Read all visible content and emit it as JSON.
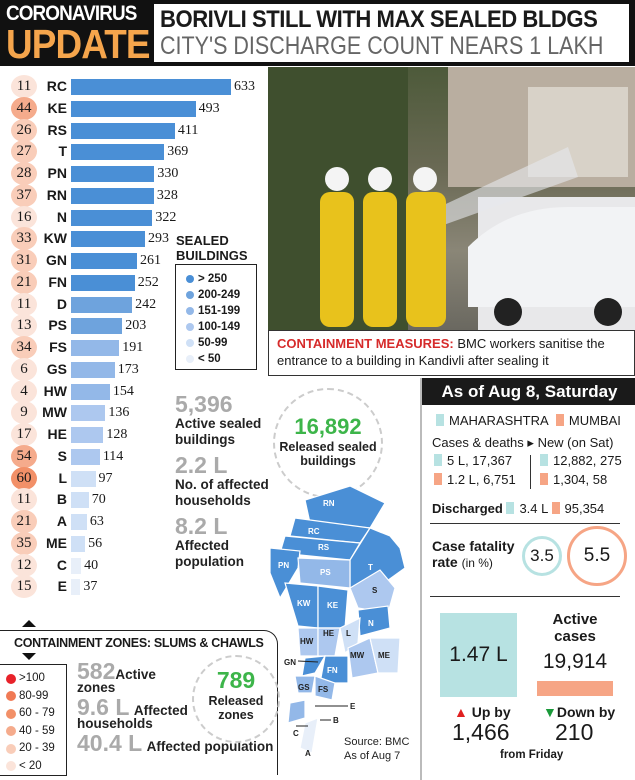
{
  "header": {
    "kicker_1": "CORONAVIRUS",
    "kicker_2": "UPDATE",
    "title": "BORIVLI STILL WITH MAX SEALED BLDGS",
    "subtitle": "CITY'S DISCHARGE COUNT NEARS 1 LAKH"
  },
  "chart_data": {
    "type": "bar",
    "orientation": "horizontal",
    "categories": [
      "RC",
      "KE",
      "RS",
      "T",
      "PN",
      "RN",
      "N",
      "KW",
      "GN",
      "FN",
      "D",
      "PS",
      "FS",
      "GS",
      "HW",
      "MW",
      "HE",
      "S",
      "L",
      "B",
      "A",
      "ME",
      "C",
      "E"
    ],
    "series": [
      {
        "name": "SEALED BUILDINGS",
        "values": [
          633,
          493,
          411,
          369,
          330,
          328,
          322,
          293,
          261,
          252,
          242,
          203,
          191,
          173,
          154,
          136,
          128,
          114,
          97,
          70,
          63,
          56,
          40,
          37
        ]
      },
      {
        "name": "CONTAINMENT ZONES: SLUMS & CHAWLS",
        "values": [
          11,
          44,
          26,
          27,
          28,
          37,
          16,
          33,
          31,
          21,
          11,
          13,
          34,
          6,
          4,
          9,
          17,
          54,
          60,
          11,
          21,
          35,
          12,
          15
        ]
      }
    ],
    "extra_containment_zone_value": null
  },
  "sealed_legend": {
    "title_1": "SEALED",
    "title_2": "BUILDINGS",
    "items": [
      {
        "label": "> 250",
        "color": "#4a8fd6"
      },
      {
        "label": "200-249",
        "color": "#6ea3dd"
      },
      {
        "label": "151-199",
        "color": "#93b8e8"
      },
      {
        "label": "100-149",
        "color": "#adc8ef"
      },
      {
        "label": "50-99",
        "color": "#cfe0f6"
      },
      {
        "label": "< 50",
        "color": "#e8eff9"
      }
    ]
  },
  "sealed_stats": {
    "active_value": "5,396",
    "active_label_1": "Active sealed",
    "active_label_2": "buildings",
    "households_value": "2.2 L",
    "households_label_1": "No. of affected",
    "households_label_2": "households",
    "population_value": "8.2 L",
    "population_label_1": "Affected",
    "population_label_2": "population",
    "released_value": "16,892",
    "released_label_1": "Released sealed",
    "released_label_2": "buildings"
  },
  "photo": {
    "caption_lead": "CONTAINMENT MEASURES:",
    "caption_text": " BMC workers sanitise the entrance to a building in Kandivli after sealing it"
  },
  "containment": {
    "title": "CONTAINMENT ZONES: SLUMS & CHAWLS",
    "legend": [
      {
        "label": ">100",
        "color": "#e8222a"
      },
      {
        "label": "80-99",
        "color": "#f07a55"
      },
      {
        "label": "60 - 79",
        "color": "#f29068"
      },
      {
        "label": "40 - 59",
        "color": "#f5ab8c"
      },
      {
        "label": "20 - 39",
        "color": "#f9cdb9"
      },
      {
        "label": "< 20",
        "color": "#fbe4da"
      }
    ],
    "active_value": "582",
    "active_label_1": "Active",
    "active_label_2": "zones",
    "households_value": "9.6 L",
    "households_label_1": "Affected",
    "households_label_2": "households",
    "population_value": "40.4 L",
    "population_label": "Affected population",
    "released_value": "789",
    "released_label_1": "Released",
    "released_label_2": "zones"
  },
  "map": {
    "wards": [
      "RN",
      "RC",
      "RS",
      "PN",
      "T",
      "PS",
      "S",
      "KW",
      "KE",
      "N",
      "HW",
      "HE",
      "L",
      "MW",
      "ME",
      "GN",
      "FN",
      "GS",
      "FS",
      "E",
      "D",
      "B",
      "C",
      "A"
    ],
    "source_1": "Source: BMC",
    "source_2": "As of Aug 7"
  },
  "stats": {
    "title": "As of Aug 8, Saturday",
    "legend_maharashtra": "MAHARASHTRA",
    "legend_mumbai": "MUMBAI",
    "cases_label": "Cases & deaths",
    "new_label": "New (on Sat)",
    "mh_cases": "5 L, 17,367",
    "mum_cases": "1.2 L, 6,751",
    "mh_new": "12,882, 275",
    "mum_new": "1,304, 58",
    "discharged_label": "Discharged",
    "mh_discharged": "3.4 L",
    "mum_discharged": "95,354",
    "cfr_label_1": "Case fatality",
    "cfr_label_2": "rate",
    "cfr_unit": "(in %)",
    "mh_cfr": "3.5",
    "mum_cfr": "5.5",
    "active_label_1": "Active",
    "active_label_2": "cases",
    "mh_active": "1.47 L",
    "mum_active": "19,914",
    "mh_change_label": "Up by",
    "mh_change": "1,466",
    "mum_change_label": "Down by",
    "mum_change": "210",
    "change_note": "from Friday",
    "colors": {
      "maharashtra": "#b7e2e2",
      "mumbai": "#f6a585"
    }
  }
}
